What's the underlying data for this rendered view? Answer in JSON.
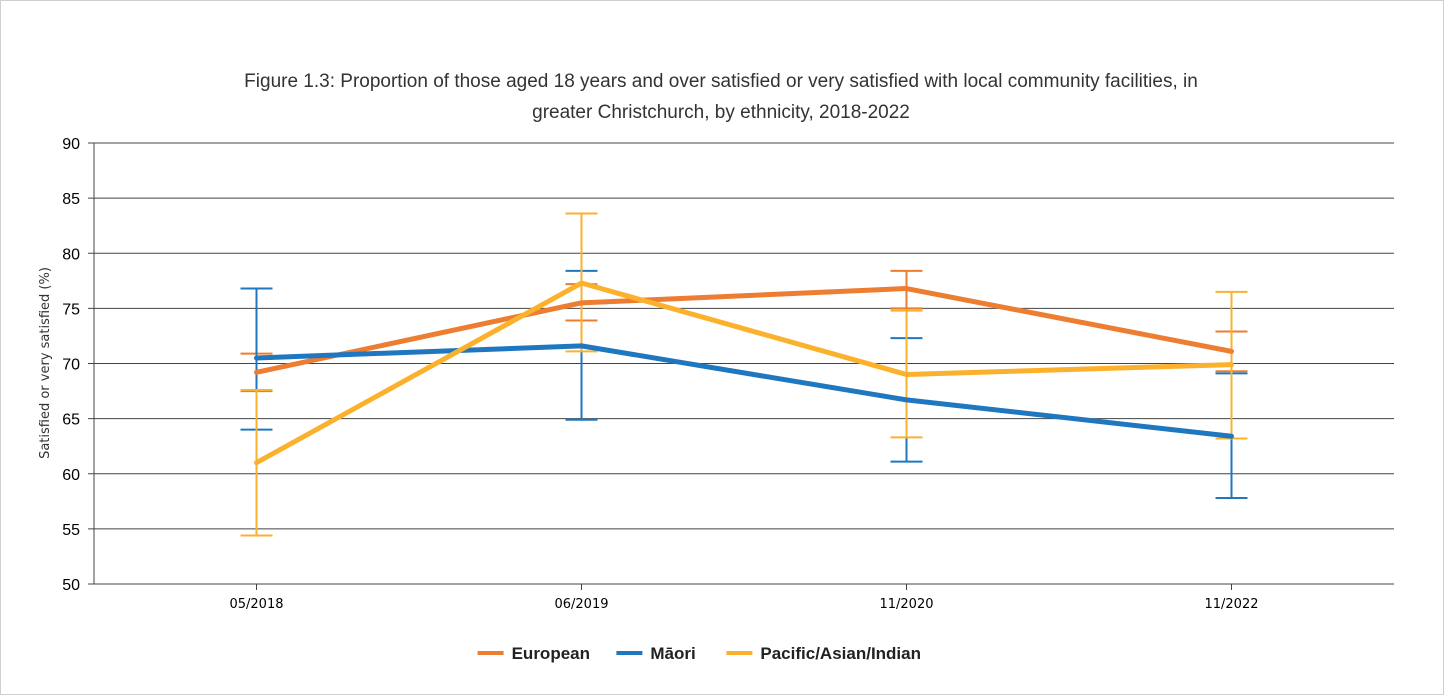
{
  "chart_data": {
    "type": "line",
    "title_line1": "Figure 1.3: Proportion of those aged 18 years and over satisfied or very satisfied with local community facilities, in",
    "title_line2": "greater Christchurch, by ethnicity, 2018-2022",
    "xlabel": "",
    "ylabel": "Satisfied or very satisfied (%)",
    "categories": [
      "05/2018",
      "06/2019",
      "11/2020",
      "11/2022"
    ],
    "ylim": [
      50,
      90
    ],
    "yticks": [
      50,
      55,
      60,
      65,
      70,
      75,
      80,
      85,
      90
    ],
    "grid": true,
    "legend_position": "bottom",
    "series": [
      {
        "name": "European",
        "color": "#ed7d31",
        "values": [
          69.2,
          75.5,
          76.8,
          71.1
        ],
        "err_low": [
          67.5,
          73.9,
          75.0,
          69.3
        ],
        "err_high": [
          70.9,
          77.2,
          78.4,
          72.9
        ]
      },
      {
        "name": "Māori",
        "color": "#1f77c0",
        "values": [
          70.5,
          71.6,
          66.7,
          63.4
        ],
        "err_low": [
          64.0,
          64.9,
          61.1,
          57.8
        ],
        "err_high": [
          76.8,
          78.4,
          72.3,
          69.1
        ]
      },
      {
        "name": "Pacific/Asian/Indian",
        "color": "#fbb12c",
        "values": [
          61.0,
          77.3,
          69.0,
          69.9
        ],
        "err_low": [
          54.4,
          71.1,
          63.3,
          63.2
        ],
        "err_high": [
          67.6,
          83.6,
          74.8,
          76.5
        ]
      }
    ]
  }
}
